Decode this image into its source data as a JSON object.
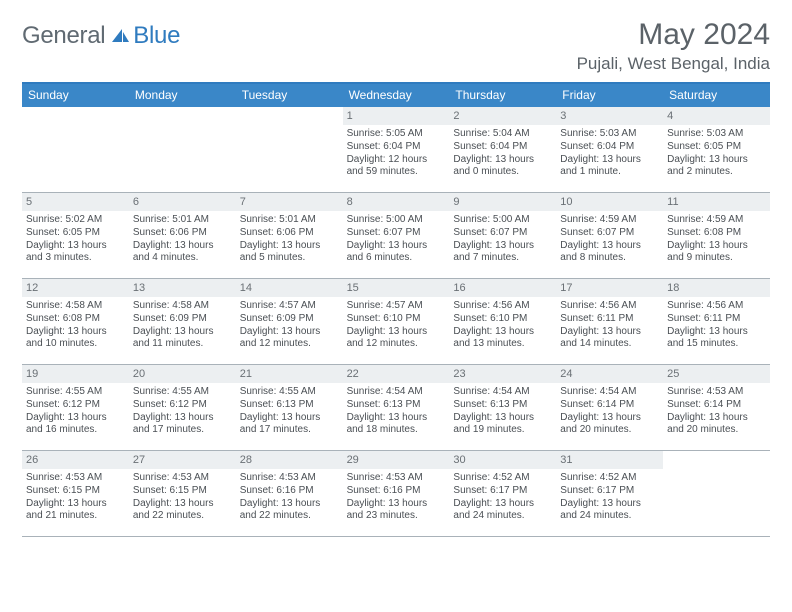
{
  "colors": {
    "header_bar": "#3a87c8",
    "accent_line": "#2f7bbf",
    "daynum_bg": "#eceff1",
    "cell_border": "#a9b2b9",
    "text_dark": "#4a4f54",
    "text_muted": "#5b6268",
    "logo_gray": "#606a72",
    "logo_blue": "#2f7bbf"
  },
  "fonts": {
    "month_title_pt": 30,
    "location_pt": 17,
    "weekday_pt": 12,
    "daynum_pt": 11,
    "body_pt": 10
  },
  "logo": {
    "general": "General",
    "blue": "Blue"
  },
  "header": {
    "title": "May 2024",
    "location": "Pujali, West Bengal, India"
  },
  "weekdays": [
    "Sunday",
    "Monday",
    "Tuesday",
    "Wednesday",
    "Thursday",
    "Friday",
    "Saturday"
  ],
  "calendar": {
    "blanks_before": 3,
    "days": [
      {
        "n": "1",
        "sr": "5:05 AM",
        "ss": "6:04 PM",
        "dl": "12 hours and 59 minutes."
      },
      {
        "n": "2",
        "sr": "5:04 AM",
        "ss": "6:04 PM",
        "dl": "13 hours and 0 minutes."
      },
      {
        "n": "3",
        "sr": "5:03 AM",
        "ss": "6:04 PM",
        "dl": "13 hours and 1 minute."
      },
      {
        "n": "4",
        "sr": "5:03 AM",
        "ss": "6:05 PM",
        "dl": "13 hours and 2 minutes."
      },
      {
        "n": "5",
        "sr": "5:02 AM",
        "ss": "6:05 PM",
        "dl": "13 hours and 3 minutes."
      },
      {
        "n": "6",
        "sr": "5:01 AM",
        "ss": "6:06 PM",
        "dl": "13 hours and 4 minutes."
      },
      {
        "n": "7",
        "sr": "5:01 AM",
        "ss": "6:06 PM",
        "dl": "13 hours and 5 minutes."
      },
      {
        "n": "8",
        "sr": "5:00 AM",
        "ss": "6:07 PM",
        "dl": "13 hours and 6 minutes."
      },
      {
        "n": "9",
        "sr": "5:00 AM",
        "ss": "6:07 PM",
        "dl": "13 hours and 7 minutes."
      },
      {
        "n": "10",
        "sr": "4:59 AM",
        "ss": "6:07 PM",
        "dl": "13 hours and 8 minutes."
      },
      {
        "n": "11",
        "sr": "4:59 AM",
        "ss": "6:08 PM",
        "dl": "13 hours and 9 minutes."
      },
      {
        "n": "12",
        "sr": "4:58 AM",
        "ss": "6:08 PM",
        "dl": "13 hours and 10 minutes."
      },
      {
        "n": "13",
        "sr": "4:58 AM",
        "ss": "6:09 PM",
        "dl": "13 hours and 11 minutes."
      },
      {
        "n": "14",
        "sr": "4:57 AM",
        "ss": "6:09 PM",
        "dl": "13 hours and 12 minutes."
      },
      {
        "n": "15",
        "sr": "4:57 AM",
        "ss": "6:10 PM",
        "dl": "13 hours and 12 minutes."
      },
      {
        "n": "16",
        "sr": "4:56 AM",
        "ss": "6:10 PM",
        "dl": "13 hours and 13 minutes."
      },
      {
        "n": "17",
        "sr": "4:56 AM",
        "ss": "6:11 PM",
        "dl": "13 hours and 14 minutes."
      },
      {
        "n": "18",
        "sr": "4:56 AM",
        "ss": "6:11 PM",
        "dl": "13 hours and 15 minutes."
      },
      {
        "n": "19",
        "sr": "4:55 AM",
        "ss": "6:12 PM",
        "dl": "13 hours and 16 minutes."
      },
      {
        "n": "20",
        "sr": "4:55 AM",
        "ss": "6:12 PM",
        "dl": "13 hours and 17 minutes."
      },
      {
        "n": "21",
        "sr": "4:55 AM",
        "ss": "6:13 PM",
        "dl": "13 hours and 17 minutes."
      },
      {
        "n": "22",
        "sr": "4:54 AM",
        "ss": "6:13 PM",
        "dl": "13 hours and 18 minutes."
      },
      {
        "n": "23",
        "sr": "4:54 AM",
        "ss": "6:13 PM",
        "dl": "13 hours and 19 minutes."
      },
      {
        "n": "24",
        "sr": "4:54 AM",
        "ss": "6:14 PM",
        "dl": "13 hours and 20 minutes."
      },
      {
        "n": "25",
        "sr": "4:53 AM",
        "ss": "6:14 PM",
        "dl": "13 hours and 20 minutes."
      },
      {
        "n": "26",
        "sr": "4:53 AM",
        "ss": "6:15 PM",
        "dl": "13 hours and 21 minutes."
      },
      {
        "n": "27",
        "sr": "4:53 AM",
        "ss": "6:15 PM",
        "dl": "13 hours and 22 minutes."
      },
      {
        "n": "28",
        "sr": "4:53 AM",
        "ss": "6:16 PM",
        "dl": "13 hours and 22 minutes."
      },
      {
        "n": "29",
        "sr": "4:53 AM",
        "ss": "6:16 PM",
        "dl": "13 hours and 23 minutes."
      },
      {
        "n": "30",
        "sr": "4:52 AM",
        "ss": "6:17 PM",
        "dl": "13 hours and 24 minutes."
      },
      {
        "n": "31",
        "sr": "4:52 AM",
        "ss": "6:17 PM",
        "dl": "13 hours and 24 minutes."
      }
    ]
  },
  "labels": {
    "sunrise": "Sunrise: ",
    "sunset": "Sunset: ",
    "daylight": "Daylight: "
  }
}
